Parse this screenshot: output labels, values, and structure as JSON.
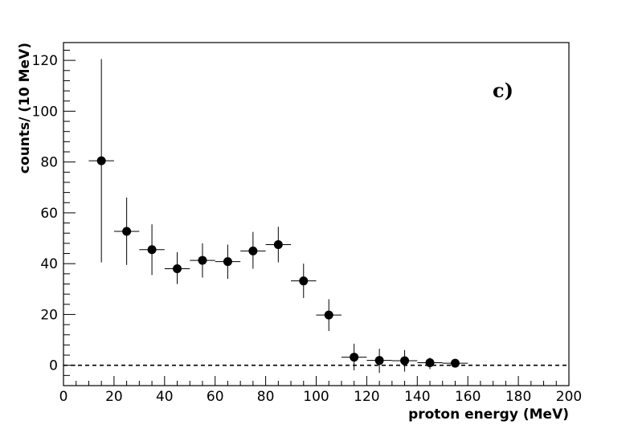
{
  "chart_data": {
    "type": "scatter",
    "title": "",
    "xlabel": "proton energy (MeV)",
    "ylabel": "counts/ (10 MeV)",
    "xlim": [
      0,
      200
    ],
    "ylim": [
      -8,
      127
    ],
    "xticks": [
      0,
      20,
      40,
      60,
      80,
      100,
      120,
      140,
      160,
      180,
      200
    ],
    "yticks": [
      0,
      20,
      40,
      60,
      80,
      100,
      120
    ],
    "grid": false,
    "legend": "none",
    "annotation": "c)",
    "reference_line": {
      "y": 0,
      "style": "dashed"
    },
    "series": [
      {
        "x": [
          15,
          25,
          35,
          45,
          55,
          65,
          75,
          85,
          95,
          105,
          115,
          125,
          135,
          145,
          155
        ],
        "y": [
          80.5,
          52.7,
          45.5,
          38,
          41.3,
          40.8,
          45,
          47.5,
          33.2,
          19.8,
          3.2,
          1.9,
          1.8,
          1.0,
          0.8
        ],
        "x_err": [
          5,
          5,
          5,
          5,
          5,
          5,
          5,
          5,
          5,
          5,
          5,
          5,
          5,
          5,
          5
        ],
        "y_low": [
          40.5,
          39.5,
          35.5,
          32,
          34.5,
          34,
          38,
          40.5,
          26.5,
          13.5,
          -2,
          -3,
          -2.5,
          -1.5,
          -0.5
        ],
        "y_high": [
          120.5,
          66,
          55.5,
          44.5,
          48,
          47.5,
          52.5,
          54.5,
          40,
          26,
          8.5,
          6.5,
          6,
          3,
          2
        ]
      }
    ]
  }
}
